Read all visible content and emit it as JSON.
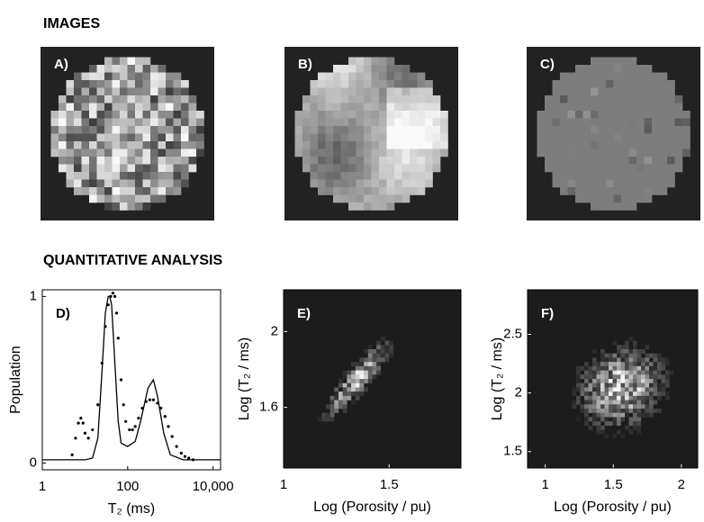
{
  "sections": {
    "images": "IMAGES",
    "analysis": "QUANTITATIVE ANALYSIS"
  },
  "images": [
    {
      "label": "A)"
    },
    {
      "label": "B)"
    },
    {
      "label": "C)"
    }
  ],
  "chart_data": [
    {
      "type": "line",
      "label": "D)",
      "xlabel": "T₂ (ms)",
      "ylabel": "Population",
      "xscale": "log",
      "xlim": [
        1,
        15000
      ],
      "ylim": [
        -0.04,
        1.04
      ],
      "xticks": [
        1,
        100,
        {
          "value": 10000,
          "label": "10,000"
        }
      ],
      "yticks": [
        0,
        1
      ],
      "series": [
        {
          "style": "solid",
          "color": "#000000",
          "x": [
            1,
            10,
            15,
            20,
            25,
            30,
            35,
            38,
            42,
            50,
            60,
            70,
            100,
            150,
            200,
            300,
            400,
            500,
            700,
            1000,
            2000,
            15000
          ],
          "values": [
            0.02,
            0.02,
            0.03,
            0.15,
            0.55,
            0.9,
            1.0,
            1.0,
            0.95,
            0.6,
            0.25,
            0.12,
            0.1,
            0.13,
            0.25,
            0.45,
            0.5,
            0.4,
            0.18,
            0.05,
            0.02,
            0.02
          ]
        },
        {
          "style": "dotted",
          "color": "#000000",
          "x": [
            5,
            6,
            7,
            8,
            9,
            10,
            12,
            15,
            20,
            25,
            30,
            35,
            40,
            45,
            50,
            55,
            60,
            70,
            80,
            90,
            110,
            130,
            150,
            180,
            220,
            270,
            330,
            400,
            500,
            600,
            750,
            900,
            1100,
            1400,
            1800,
            2200,
            2700,
            3400
          ],
          "values": [
            0.05,
            0.15,
            0.24,
            0.27,
            0.24,
            0.18,
            0.15,
            0.2,
            0.35,
            0.6,
            0.82,
            0.95,
            1.0,
            1.02,
            1.0,
            0.9,
            0.75,
            0.5,
            0.35,
            0.25,
            0.2,
            0.2,
            0.22,
            0.27,
            0.33,
            0.37,
            0.38,
            0.38,
            0.36,
            0.33,
            0.28,
            0.22,
            0.16,
            0.1,
            0.06,
            0.04,
            0.03,
            0.02
          ]
        }
      ]
    },
    {
      "type": "density",
      "label": "E)",
      "xlabel": "Log (Porosity / pu)",
      "ylabel": "Log (T₂ / ms)",
      "xlim": [
        1,
        1.84
      ],
      "ylim": [
        1.28,
        2.22
      ],
      "xticks": [
        1,
        1.5
      ],
      "yticks": [
        1.6,
        2
      ]
    },
    {
      "type": "density",
      "label": "F)",
      "xlabel": "Log (Porosity / pu)",
      "ylabel": "Log (T₂ / ms)",
      "xlim": [
        0.87,
        2.12
      ],
      "ylim": [
        1.36,
        2.88
      ],
      "xticks": [
        1,
        1.5,
        2
      ],
      "yticks": [
        1.5,
        2,
        2.5
      ]
    }
  ]
}
